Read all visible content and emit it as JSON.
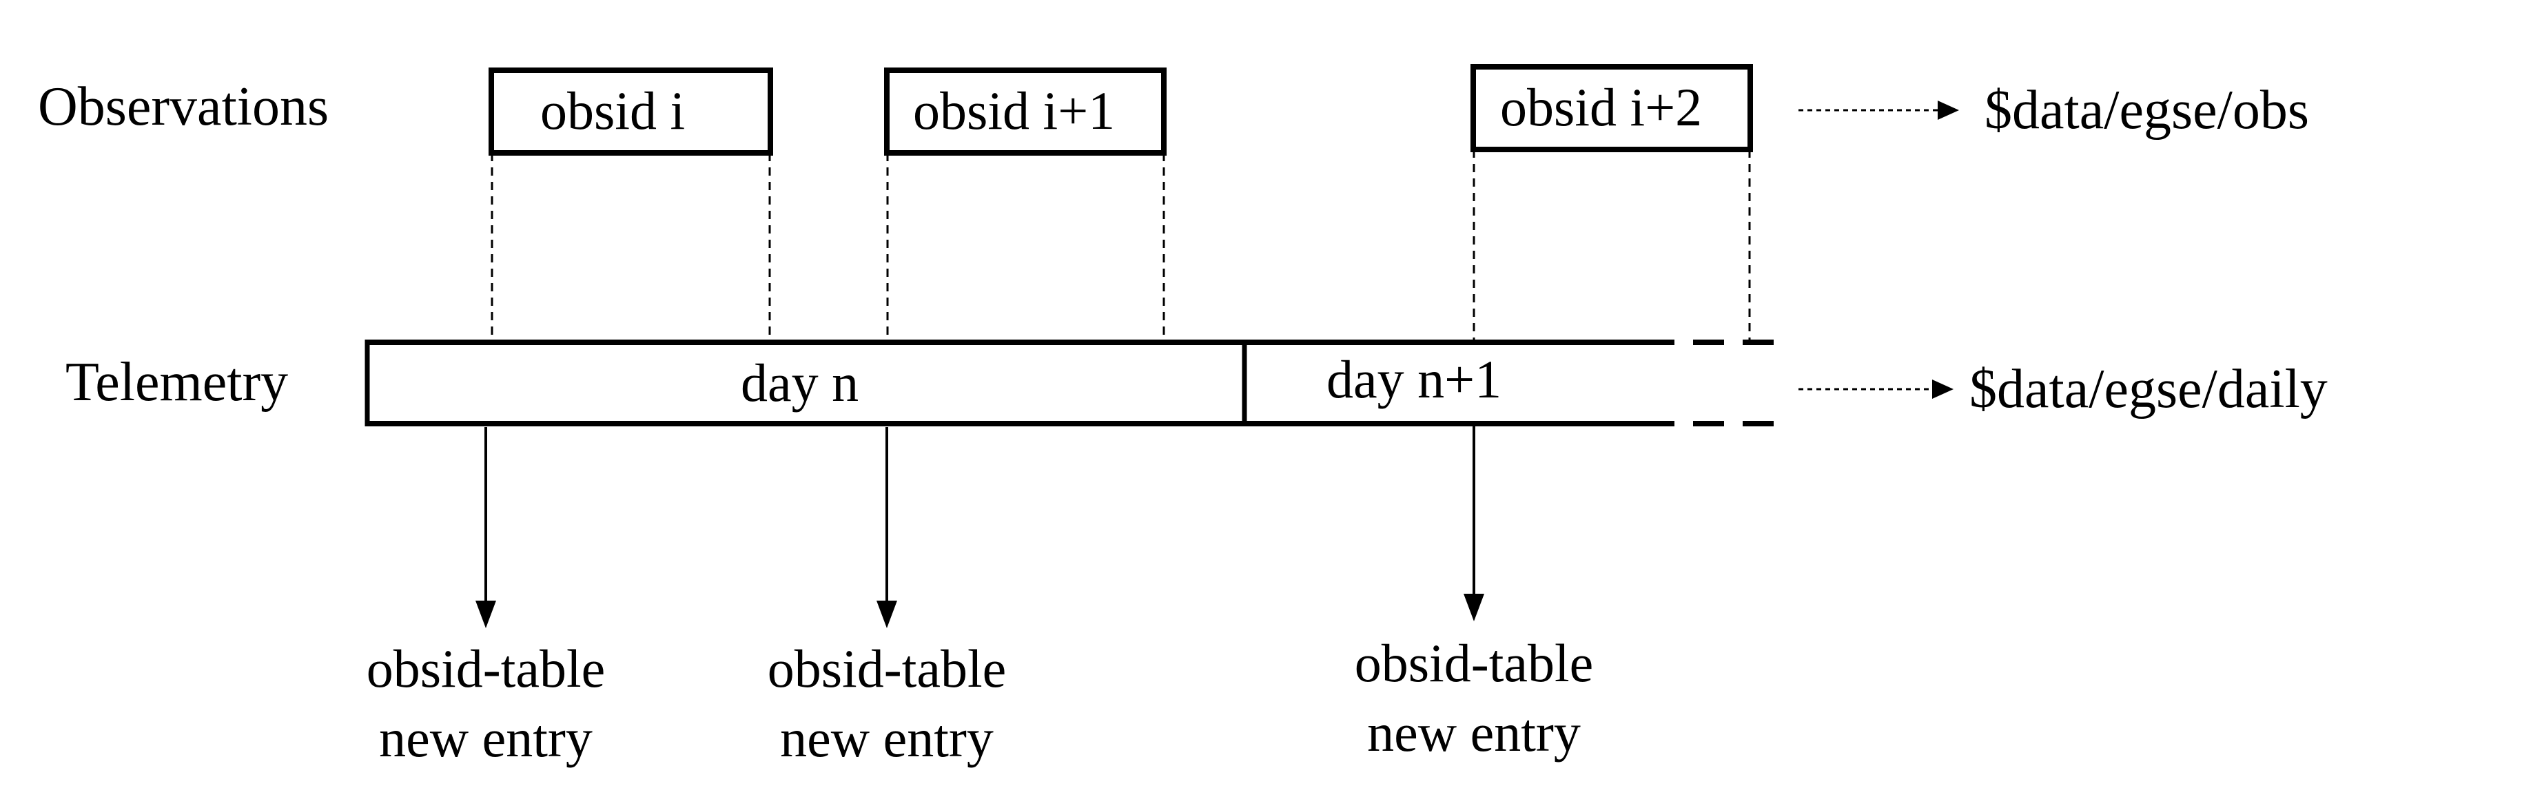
{
  "rows": {
    "observations": "Observations",
    "telemetry": "Telemetry"
  },
  "observations": [
    {
      "label": "obsid i"
    },
    {
      "label": "obsid i+1"
    },
    {
      "label": "obsid i+2"
    }
  ],
  "telemetry": {
    "days": [
      {
        "label": "day n"
      },
      {
        "label": "day n+1"
      }
    ]
  },
  "outputs": {
    "obs_path": "$data/egse/obs",
    "daily_path": "$data/egse/daily"
  },
  "entries": [
    {
      "line1": "obsid-table",
      "line2": "new entry"
    },
    {
      "line1": "obsid-table",
      "line2": "new entry"
    },
    {
      "line1": "obsid-table",
      "line2": "new entry"
    }
  ],
  "colors": {
    "ink": "#000000",
    "background": "#ffffff"
  }
}
